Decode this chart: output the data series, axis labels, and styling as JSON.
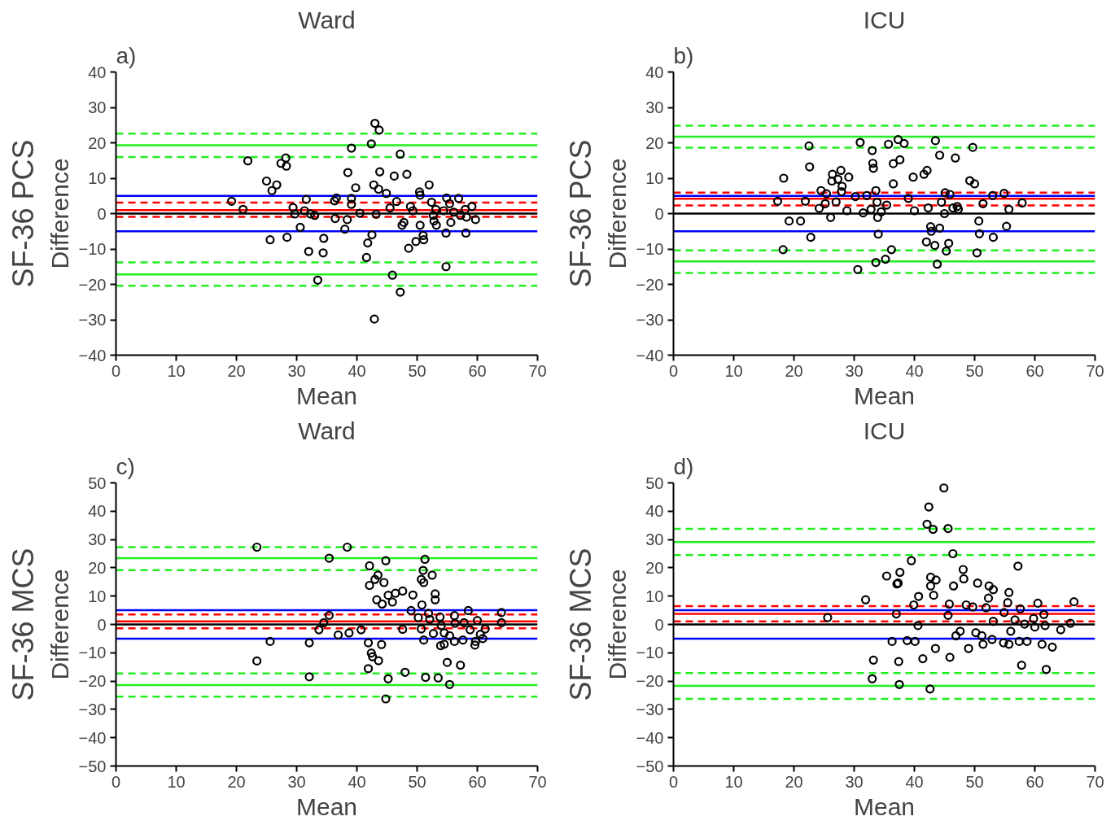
{
  "chart_data": [
    {
      "type": "scatter",
      "title": "Ward",
      "xlabel": "Mean",
      "ylabel": "Difference",
      "annotations": [
        "a)",
        "SF-36 PCS"
      ],
      "marker": "circle",
      "xlim": [
        0,
        70
      ],
      "ylim": [
        -40,
        40
      ],
      "xticks": [
        0,
        10,
        20,
        30,
        40,
        50,
        60,
        70
      ],
      "yticks": [
        -40,
        -30,
        -20,
        -10,
        0,
        10,
        20,
        30,
        40
      ],
      "ref_lines": [
        {
          "axis": "y",
          "value": 22.6,
          "color": "#22ee22",
          "line_style": "dashed"
        },
        {
          "axis": "y",
          "value": 19.3,
          "color": "#22ee22",
          "line_style": "solid"
        },
        {
          "axis": "y",
          "value": 16.0,
          "color": "#22ee22",
          "line_style": "dashed"
        },
        {
          "axis": "y",
          "value": 5,
          "color": "#0000ff",
          "line_style": "solid"
        },
        {
          "axis": "y",
          "value": 3.1,
          "color": "#ff0000",
          "line_style": "dashed"
        },
        {
          "axis": "y",
          "value": 1.0,
          "color": "#ff0000",
          "line_style": "solid"
        },
        {
          "axis": "y",
          "value": -0.9,
          "color": "#ff0000",
          "line_style": "dashed"
        },
        {
          "axis": "y",
          "value": 0,
          "color": "#000000",
          "line_style": "solid"
        },
        {
          "axis": "y",
          "value": -5,
          "color": "#0000ff",
          "line_style": "solid"
        },
        {
          "axis": "y",
          "value": -13.8,
          "color": "#22ee22",
          "line_style": "dashed"
        },
        {
          "axis": "y",
          "value": -17.2,
          "color": "#22ee22",
          "line_style": "solid"
        },
        {
          "axis": "y",
          "value": -20.4,
          "color": "#22ee22",
          "line_style": "dashed"
        }
      ],
      "series": [
        {
          "color": "#000000",
          "x": [
            19.2,
            21.1,
            21.9,
            25.0,
            25.9,
            26.7,
            27.4,
            28.2,
            28.3,
            25.6,
            28.4,
            29.4,
            29.7,
            30.6,
            31.6,
            31.3,
            32.3,
            33.0,
            32.0,
            33.5,
            34.4,
            34.5,
            36.3,
            36.6,
            36.4,
            38.0,
            38.4,
            38.5,
            39.1,
            39.1,
            39.1,
            39.8,
            40.5,
            41.6,
            41.8,
            42.4,
            42.5,
            42.8,
            43.0,
            43.2,
            43.6,
            43.7,
            43.8,
            44.9,
            45.5,
            46.2,
            46.6,
            47.2,
            47.2,
            45.9,
            48.3,
            47.5,
            47.8,
            48.6,
            48.9,
            49.3,
            49.8,
            50.4,
            50.5,
            50.5,
            51.0,
            51.1,
            52.0,
            52.4,
            52.7,
            52.8,
            53.2,
            53.1,
            54.4,
            54.8,
            54.8,
            54.9,
            55.4,
            55.6,
            56.1,
            56.9,
            57.2,
            58.0,
            58.1,
            58.2,
            59.1,
            59.7,
            42.9
          ],
          "values": [
            3.5,
            1.2,
            14.9,
            9.2,
            6.5,
            8.1,
            14.2,
            15.7,
            13.4,
            -7.4,
            -6.7,
            1.7,
            -0.1,
            -3.9,
            4.0,
            0.8,
            -0.1,
            -0.5,
            -10.7,
            -18.8,
            -11.1,
            -7.0,
            3.6,
            4.4,
            -1.4,
            -4.4,
            -1.7,
            11.6,
            18.5,
            4.3,
            2.6,
            7.3,
            0.1,
            -12.4,
            -8.3,
            19.7,
            -6.0,
            8.1,
            25.5,
            -0.2,
            6.9,
            23.6,
            11.8,
            5.7,
            1.6,
            10.6,
            3.4,
            16.8,
            -22.2,
            -17.4,
            11.1,
            -3.3,
            -2.5,
            -9.8,
            2.0,
            0.8,
            -7.9,
            6.1,
            5.2,
            -3.3,
            -6.2,
            -7.4,
            8.1,
            3.2,
            -0.5,
            -2.1,
            -3.3,
            1.2,
            0.8,
            -5.5,
            -15.0,
            4.4,
            2.8,
            -2.5,
            0.4,
            4.3,
            -0.5,
            1.2,
            -5.5,
            -1.0,
            2.0,
            -1.7,
            -29.8
          ]
        }
      ]
    },
    {
      "type": "scatter",
      "title": "ICU",
      "xlabel": "Mean",
      "ylabel": "Difference",
      "annotations": [
        "b)",
        "SF-36 PCS"
      ],
      "marker": "circle",
      "xlim": [
        0,
        70
      ],
      "ylim": [
        -40,
        40
      ],
      "xticks": [
        0,
        10,
        20,
        30,
        40,
        50,
        60,
        70
      ],
      "yticks": [
        -40,
        -30,
        -20,
        -10,
        0,
        10,
        20,
        30,
        40
      ],
      "ref_lines": [
        {
          "axis": "y",
          "value": 24.8,
          "color": "#22ee22",
          "line_style": "dashed"
        },
        {
          "axis": "y",
          "value": 21.7,
          "color": "#22ee22",
          "line_style": "solid"
        },
        {
          "axis": "y",
          "value": 18.6,
          "color": "#22ee22",
          "line_style": "dashed"
        },
        {
          "axis": "y",
          "value": 5.9,
          "color": "#ff0000",
          "line_style": "dashed"
        },
        {
          "axis": "y",
          "value": 5,
          "color": "#0000ff",
          "line_style": "solid"
        },
        {
          "axis": "y",
          "value": 4.2,
          "color": "#ff0000",
          "line_style": "solid"
        },
        {
          "axis": "y",
          "value": 2.3,
          "color": "#ff0000",
          "line_style": "dashed"
        },
        {
          "axis": "y",
          "value": 0,
          "color": "#000000",
          "line_style": "solid"
        },
        {
          "axis": "y",
          "value": -5,
          "color": "#0000ff",
          "line_style": "solid"
        },
        {
          "axis": "y",
          "value": -10.4,
          "color": "#22ee22",
          "line_style": "dashed"
        },
        {
          "axis": "y",
          "value": -13.5,
          "color": "#22ee22",
          "line_style": "solid"
        },
        {
          "axis": "y",
          "value": -16.8,
          "color": "#22ee22",
          "line_style": "dashed"
        }
      ],
      "series": [
        {
          "color": "#000000",
          "x": [
            18.3,
            22.5,
            22.6,
            17.3,
            21.9,
            19.2,
            21.1,
            22.8,
            18.2,
            24.2,
            24.5,
            25.4,
            25.2,
            26.1,
            26.4,
            26.3,
            27.3,
            27.8,
            28.0,
            27.9,
            29.1,
            27.0,
            28.8,
            30.2,
            31.0,
            31.5,
            32.1,
            33.0,
            33.1,
            33.2,
            33.6,
            33.8,
            32.8,
            33.9,
            34.5,
            35.4,
            34.0,
            35.7,
            36.5,
            36.5,
            37.3,
            37.6,
            38.3,
            36.2,
            35.2,
            33.6,
            30.6,
            39.0,
            39.8,
            40.0,
            41.6,
            42.1,
            42.3,
            42.7,
            42.8,
            42.0,
            43.4,
            44.2,
            43.5,
            44.2,
            46.8,
            44.5,
            45.1,
            45.9,
            45.0,
            46.4,
            47.1,
            47.3,
            45.7,
            45.3,
            43.8,
            49.2,
            50.0,
            49.7,
            50.7,
            50.8,
            51.4,
            53.0,
            53.1,
            54.9,
            55.7,
            55.3,
            57.9,
            50.4
          ],
          "values": [
            10.0,
            19.1,
            13.2,
            3.5,
            3.5,
            -2.1,
            -2.1,
            -6.7,
            -10.2,
            1.5,
            6.5,
            5.6,
            2.8,
            -1.1,
            11.1,
            9.2,
            9.7,
            12.2,
            7.7,
            6.2,
            10.3,
            3.3,
            0.8,
            4.8,
            20.1,
            0.2,
            5.1,
            17.8,
            14.2,
            12.8,
            6.5,
            3.2,
            1.2,
            -1.1,
            0.5,
            2.4,
            -5.8,
            19.6,
            14.1,
            8.4,
            20.9,
            15.2,
            19.8,
            -10.2,
            -12.9,
            -13.8,
            -15.8,
            4.3,
            10.3,
            0.8,
            11.1,
            12.2,
            1.6,
            -3.7,
            -5.0,
            -8.0,
            -9.0,
            -4.1,
            20.6,
            16.5,
            15.7,
            3.2,
            5.9,
            5.4,
            0.0,
            1.6,
            2.0,
            1.2,
            -8.4,
            -10.6,
            -14.3,
            9.3,
            8.4,
            18.7,
            -2.1,
            -5.7,
            2.8,
            5.1,
            -6.7,
            5.7,
            1.2,
            -3.6,
            3.0,
            -11.1
          ]
        }
      ]
    },
    {
      "type": "scatter",
      "title": "Ward",
      "xlabel": "Mean",
      "ylabel": "Difference",
      "annotations": [
        "c)",
        "SF-36 MCS"
      ],
      "marker": "circle",
      "xlim": [
        0,
        70
      ],
      "ylim": [
        -50,
        50
      ],
      "xticks": [
        0,
        10,
        20,
        30,
        40,
        50,
        60,
        70
      ],
      "yticks": [
        -50,
        -40,
        -30,
        -20,
        -10,
        0,
        10,
        20,
        30,
        40,
        50
      ],
      "ref_lines": [
        {
          "axis": "y",
          "value": 27.3,
          "color": "#22ee22",
          "line_style": "dashed"
        },
        {
          "axis": "y",
          "value": 23.4,
          "color": "#22ee22",
          "line_style": "solid"
        },
        {
          "axis": "y",
          "value": 19.2,
          "color": "#22ee22",
          "line_style": "dashed"
        },
        {
          "axis": "y",
          "value": 5,
          "color": "#0000ff",
          "line_style": "solid"
        },
        {
          "axis": "y",
          "value": 3.5,
          "color": "#ff0000",
          "line_style": "dashed"
        },
        {
          "axis": "y",
          "value": 1.1,
          "color": "#ff0000",
          "line_style": "solid"
        },
        {
          "axis": "y",
          "value": -1.4,
          "color": "#ff0000",
          "line_style": "dashed"
        },
        {
          "axis": "y",
          "value": 0,
          "color": "#000000",
          "line_style": "solid"
        },
        {
          "axis": "y",
          "value": -5,
          "color": "#0000ff",
          "line_style": "solid"
        },
        {
          "axis": "y",
          "value": -17.3,
          "color": "#22ee22",
          "line_style": "dashed"
        },
        {
          "axis": "y",
          "value": -21.4,
          "color": "#22ee22",
          "line_style": "solid"
        },
        {
          "axis": "y",
          "value": -25.5,
          "color": "#22ee22",
          "line_style": "dashed"
        }
      ],
      "series": [
        {
          "color": "#000000",
          "x": [
            23.4,
            38.4,
            35.4,
            25.6,
            23.4,
            32.1,
            32.1,
            33.7,
            34.5,
            35.4,
            36.9,
            38.7,
            40.7,
            42.1,
            44.8,
            43.5,
            43.0,
            42.1,
            44.5,
            43.3,
            44.2,
            45.2,
            46.4,
            47.6,
            45.9,
            49.3,
            41.9,
            44.1,
            42.4,
            42.6,
            43.6,
            41.9,
            45.2,
            44.8,
            48.0,
            47.6,
            49.0,
            50.2,
            50.7,
            50.8,
            51.1,
            51.3,
            51.0,
            50.7,
            51.1,
            52.5,
            53.0,
            53.0,
            51.9,
            52.1,
            52.7,
            53.8,
            54.0,
            54.5,
            53.9,
            54.5,
            55.0,
            53.5,
            51.4,
            55.4,
            55.4,
            56.2,
            56.3,
            56.2,
            57.6,
            57.2,
            57.8,
            58.5,
            58.8,
            60.0,
            59.7,
            59.6,
            60.5,
            60.9,
            61.3,
            64.0,
            64.0
          ],
          "values": [
            27.3,
            27.3,
            23.4,
            -6.0,
            -12.9,
            -6.5,
            -18.5,
            -1.9,
            0.6,
            3.2,
            -3.7,
            -3.0,
            -1.9,
            20.7,
            22.5,
            17.4,
            15.9,
            13.8,
            14.8,
            8.7,
            7.2,
            10.3,
            11.0,
            11.8,
            7.9,
            10.4,
            -6.5,
            -7.1,
            -10.1,
            -11.4,
            -12.8,
            -15.6,
            -19.2,
            -26.3,
            -16.9,
            -1.7,
            4.9,
            2.4,
            -1.6,
            6.9,
            -5.5,
            23.0,
            19.1,
            15.9,
            14.8,
            17.4,
            10.8,
            8.7,
            3.9,
            1.8,
            -3.2,
            2.6,
            -0.4,
            -3.0,
            -7.5,
            -7.0,
            -13.4,
            -18.9,
            -18.7,
            -21.2,
            -4.0,
            3.1,
            0.4,
            -6.0,
            -5.5,
            -14.4,
            0.6,
            4.9,
            -1.9,
            1.4,
            -6.0,
            -7.3,
            -3.5,
            -5.0,
            -1.6,
            4.2,
            0.6
          ]
        }
      ]
    },
    {
      "type": "scatter",
      "title": "ICU",
      "xlabel": "Mean",
      "ylabel": "Difference",
      "annotations": [
        "d)",
        "SF-36 MCS"
      ],
      "marker": "circle",
      "xlim": [
        0,
        70
      ],
      "ylim": [
        -50,
        50
      ],
      "xticks": [
        0,
        10,
        20,
        30,
        40,
        50,
        60,
        70
      ],
      "yticks": [
        -50,
        -40,
        -30,
        -20,
        -10,
        0,
        10,
        20,
        30,
        40,
        50
      ],
      "ref_lines": [
        {
          "axis": "y",
          "value": 33.8,
          "color": "#22ee22",
          "line_style": "dashed"
        },
        {
          "axis": "y",
          "value": 29.1,
          "color": "#22ee22",
          "line_style": "solid"
        },
        {
          "axis": "y",
          "value": 24.5,
          "color": "#22ee22",
          "line_style": "dashed"
        },
        {
          "axis": "y",
          "value": 6.5,
          "color": "#ff0000",
          "line_style": "dashed"
        },
        {
          "axis": "y",
          "value": 5,
          "color": "#0000ff",
          "line_style": "solid"
        },
        {
          "axis": "y",
          "value": 3.7,
          "color": "#ff0000",
          "line_style": "solid"
        },
        {
          "axis": "y",
          "value": 1.1,
          "color": "#ff0000",
          "line_style": "dashed"
        },
        {
          "axis": "y",
          "value": 0,
          "color": "#000000",
          "line_style": "solid"
        },
        {
          "axis": "y",
          "value": -5,
          "color": "#0000ff",
          "line_style": "solid"
        },
        {
          "axis": "y",
          "value": -17.2,
          "color": "#22ee22",
          "line_style": "dashed"
        },
        {
          "axis": "y",
          "value": -21.7,
          "color": "#22ee22",
          "line_style": "solid"
        },
        {
          "axis": "y",
          "value": -26.3,
          "color": "#22ee22",
          "line_style": "dashed"
        }
      ],
      "series": [
        {
          "color": "#000000",
          "x": [
            25.6,
            31.9,
            33.2,
            33.0,
            35.4,
            36.3,
            37.0,
            37.4,
            37.5,
            37.1,
            37.6,
            37.3,
            38.8,
            39.5,
            40.1,
            39.9,
            40.7,
            40.6,
            41.4,
            42.4,
            42.1,
            43.1,
            42.7,
            43.6,
            42.7,
            43.2,
            43.5,
            42.6,
            44.9,
            45.6,
            46.4,
            46.5,
            45.8,
            45.6,
            45.9,
            48.1,
            48.2,
            46.9,
            47.6,
            48.6,
            49.0,
            49.7,
            50.5,
            50.2,
            51.2,
            51.4,
            51.9,
            52.3,
            52.4,
            53.1,
            52.9,
            53.1,
            54.9,
            54.8,
            55.5,
            55.7,
            55.7,
            56.0,
            56.7,
            57.2,
            57.6,
            57.4,
            57.8,
            58.3,
            58.7,
            59.8,
            60.0,
            60.5,
            61.5,
            61.2,
            61.7,
            62.9,
            61.9,
            64.3,
            65.9,
            66.5
          ],
          "values": [
            2.4,
            8.7,
            -12.6,
            -19.2,
            17.1,
            -6.0,
            3.7,
            -13.1,
            -21.2,
            14.3,
            18.4,
            14.6,
            -5.7,
            22.5,
            -6.0,
            6.9,
            9.9,
            -0.4,
            -12.1,
            41.5,
            35.4,
            33.6,
            16.7,
            15.7,
            13.6,
            10.3,
            -8.5,
            -22.8,
            48.2,
            33.9,
            25.0,
            13.6,
            7.2,
            3.2,
            -11.6,
            19.4,
            16.1,
            -4.0,
            -2.4,
            6.9,
            -8.5,
            6.2,
            14.6,
            -2.9,
            -4.0,
            -7.0,
            5.9,
            9.3,
            13.6,
            12.3,
            -5.3,
            1.1,
            4.2,
            -6.5,
            7.7,
            11.3,
            -7.0,
            -2.4,
            1.6,
            20.6,
            5.5,
            -6.0,
            -14.4,
            0.1,
            -6.0,
            2.1,
            -0.9,
            7.5,
            3.5,
            -7.0,
            -0.4,
            -8.0,
            -15.9,
            -1.9,
            0.4,
            8.0
          ]
        }
      ]
    }
  ]
}
